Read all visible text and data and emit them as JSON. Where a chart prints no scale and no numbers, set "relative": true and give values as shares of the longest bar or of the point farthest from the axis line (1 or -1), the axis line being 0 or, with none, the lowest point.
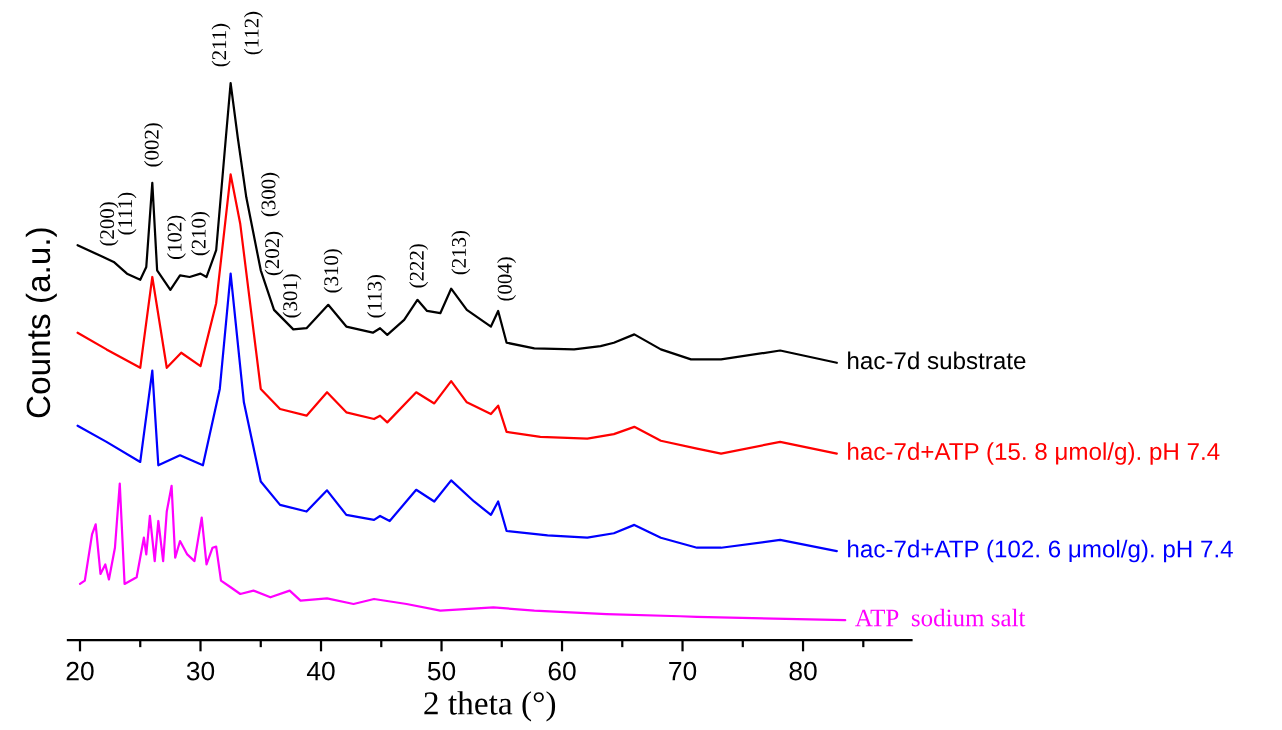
{
  "chart_data": {
    "type": "line",
    "relative": true,
    "xlabel": "2 theta (°)",
    "ylabel": "Counts (a.u.)",
    "xlim": [
      19,
      89
    ],
    "xticks": [
      20,
      {
        "value": 25,
        "label": null
      },
      30,
      {
        "value": 35,
        "label": null
      },
      40,
      {
        "value": 45,
        "label": null
      },
      50,
      {
        "value": 55,
        "label": null
      },
      60,
      {
        "value": 65,
        "label": null
      },
      70,
      {
        "value": 75,
        "label": null
      },
      80,
      {
        "value": 85,
        "label": null
      }
    ],
    "grid": false,
    "legend": false,
    "marker": "none",
    "line_style": "solid",
    "series": [
      {
        "name": "hac-7d substrate",
        "color": "#000000",
        "x": [
          19.8,
          21.7,
          22.8,
          23.9,
          25.0,
          25.5,
          26.0,
          26.4,
          27.5,
          28.3,
          29.1,
          30.0,
          30.5,
          31.3,
          32.1,
          32.5,
          33.1,
          33.8,
          35.0,
          36.1,
          37.7,
          38.8,
          40.6,
          42.1,
          44.3,
          44.9,
          45.5,
          46.9,
          48.0,
          48.8,
          49.9,
          50.8,
          52.1,
          54.1,
          54.7,
          55.4,
          57.7,
          61.0,
          63.2,
          64.3,
          66.0,
          68.2,
          70.7,
          73.2,
          78.1,
          82.8
        ],
        "values": [
          0.709,
          0.69,
          0.679,
          0.658,
          0.647,
          0.67,
          0.821,
          0.664,
          0.629,
          0.655,
          0.652,
          0.658,
          0.652,
          0.7,
          0.901,
          1.0,
          0.901,
          0.795,
          0.664,
          0.593,
          0.558,
          0.56,
          0.602,
          0.563,
          0.552,
          0.56,
          0.548,
          0.575,
          0.611,
          0.591,
          0.587,
          0.631,
          0.593,
          0.563,
          0.591,
          0.534,
          0.524,
          0.522,
          0.528,
          0.534,
          0.549,
          0.522,
          0.504,
          0.504,
          0.52,
          0.498
        ]
      },
      {
        "name": "hac-7d+ATP (15. 8 μmol/g). pH 7.4",
        "color": "#ff0000",
        "x": [
          19.8,
          22.2,
          25.0,
          26.0,
          27.2,
          28.4,
          30.0,
          31.3,
          32.5,
          33.3,
          35.0,
          36.6,
          38.8,
          40.5,
          42.1,
          44.4,
          44.9,
          45.5,
          47.9,
          49.4,
          50.8,
          52.1,
          54.1,
          54.7,
          55.4,
          58.2,
          62.1,
          64.3,
          66.0,
          68.2,
          71.2,
          73.2,
          78.1,
          82.8
        ],
        "values": [
          0.552,
          0.522,
          0.489,
          0.652,
          0.489,
          0.516,
          0.492,
          0.605,
          0.836,
          0.747,
          0.451,
          0.415,
          0.403,
          0.445,
          0.409,
          0.397,
          0.403,
          0.391,
          0.445,
          0.425,
          0.465,
          0.427,
          0.406,
          0.421,
          0.374,
          0.365,
          0.362,
          0.37,
          0.383,
          0.358,
          0.344,
          0.335,
          0.356,
          0.335
        ]
      },
      {
        "name": "hac-7d+ATP (102. 6 μmol/g). pH 7.4",
        "color": "#0000ff",
        "x": [
          19.8,
          22.2,
          25.0,
          26.0,
          26.5,
          28.3,
          30.2,
          31.6,
          32.5,
          33.6,
          35.0,
          36.6,
          38.8,
          40.5,
          42.1,
          44.4,
          44.9,
          45.7,
          47.9,
          49.4,
          50.8,
          52.7,
          54.1,
          54.7,
          55.4,
          58.8,
          62.1,
          64.3,
          66.0,
          68.2,
          71.2,
          73.2,
          78.1,
          82.8
        ],
        "values": [
          0.385,
          0.356,
          0.32,
          0.484,
          0.314,
          0.332,
          0.314,
          0.451,
          0.658,
          0.427,
          0.285,
          0.243,
          0.231,
          0.269,
          0.225,
          0.216,
          0.223,
          0.214,
          0.27,
          0.249,
          0.287,
          0.249,
          0.225,
          0.249,
          0.196,
          0.188,
          0.184,
          0.192,
          0.207,
          0.184,
          0.166,
          0.166,
          0.18,
          0.16
        ]
      },
      {
        "name": "ATP  sodium salt",
        "color": "#ff00ff",
        "x": [
          20.0,
          20.4,
          21.0,
          21.3,
          21.7,
          22.1,
          22.4,
          22.9,
          23.3,
          23.7,
          24.7,
          25.3,
          25.5,
          25.8,
          26.2,
          26.5,
          26.9,
          27.2,
          27.6,
          27.9,
          28.3,
          28.9,
          29.5,
          30.1,
          30.5,
          31.0,
          31.3,
          31.7,
          32.5,
          33.3,
          34.4,
          35.8,
          37.4,
          38.3,
          40.5,
          42.7,
          44.4,
          47.1,
          49.9,
          54.3,
          57.7,
          63.7,
          69.8,
          71.2,
          83.5
        ],
        "values": [
          0.101,
          0.107,
          0.19,
          0.208,
          0.119,
          0.136,
          0.109,
          0.166,
          0.281,
          0.101,
          0.113,
          0.184,
          0.154,
          0.223,
          0.142,
          0.214,
          0.142,
          0.231,
          0.277,
          0.148,
          0.178,
          0.154,
          0.142,
          0.22,
          0.136,
          0.166,
          0.168,
          0.107,
          0.095,
          0.083,
          0.089,
          0.077,
          0.089,
          0.071,
          0.075,
          0.065,
          0.074,
          0.065,
          0.053,
          0.059,
          0.053,
          0.047,
          0.043,
          0.042,
          0.036
        ]
      }
    ],
    "annotations": [
      {
        "text": "(200)",
        "x": 22.8,
        "y": 0.679
      },
      {
        "text": "(111)",
        "x": 23.9,
        "y": 0.658
      },
      {
        "text": "(002)",
        "x": 26.0,
        "y": 0.821
      },
      {
        "text": "(102)",
        "x": 28.3,
        "y": 0.655
      },
      {
        "text": "(210)",
        "x": 30.0,
        "y": 0.658
      },
      {
        "text": "(211)",
        "x": 32.5,
        "y": 1.0
      },
      {
        "text": "(112)",
        "x": 32.5,
        "y": 1.0
      },
      {
        "text": "(300)",
        "x": 33.8,
        "y": 0.795
      },
      {
        "text": "(202)",
        "x": 35.0,
        "y": 0.664
      },
      {
        "text": "(301)",
        "x": 36.1,
        "y": 0.593
      },
      {
        "text": "(310)",
        "x": 40.6,
        "y": 0.602
      },
      {
        "text": "(113)",
        "x": 44.9,
        "y": 0.56
      },
      {
        "text": "(222)",
        "x": 48.0,
        "y": 0.611
      },
      {
        "text": "(213)",
        "x": 50.8,
        "y": 0.631
      },
      {
        "text": "(004)",
        "x": 54.7,
        "y": 0.591
      }
    ]
  }
}
